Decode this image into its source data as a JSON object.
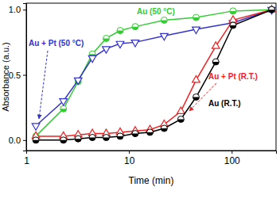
{
  "chart_data": {
    "type": "line",
    "xlabel": "Time (min)",
    "ylabel": "Absorbance (a.u.)",
    "log": "x",
    "xlim": [
      1,
      270
    ],
    "xticks": [
      1,
      10,
      100
    ],
    "ylim": [
      -0.08,
      1.05
    ],
    "yticks": [
      {
        "value": 0,
        "label": "0.0"
      },
      {
        "value": 0.5,
        "label": "0.5"
      },
      {
        "value": 1,
        "label": "1.0"
      }
    ],
    "series": [
      {
        "name": "Au (50 °C)",
        "color": "#33cc33",
        "marker": "circle",
        "x": [
          1.24,
          2.3,
          3.2,
          4.4,
          6.0,
          8.2,
          11.5,
          22,
          45,
          103,
          245
        ],
        "values": [
          0.03,
          0.24,
          0.45,
          0.66,
          0.78,
          0.84,
          0.87,
          0.92,
          0.94,
          0.99,
          1.0
        ]
      },
      {
        "name": "Au + Pt (50 °C)",
        "color": "#3333cc",
        "marker": "triangle-down",
        "x": [
          1.24,
          2.3,
          3.2,
          4.4,
          6.0,
          8.2,
          11.5,
          22,
          45,
          103,
          245
        ],
        "values": [
          0.11,
          0.3,
          0.46,
          0.63,
          0.7,
          0.74,
          0.75,
          0.8,
          0.85,
          0.9,
          1.0
        ]
      },
      {
        "name": "Au + Pt (R.T.)",
        "color": "#ee2222",
        "marker": "triangle-up",
        "x": [
          1.24,
          2.3,
          3.2,
          4.4,
          6.0,
          8.2,
          11.5,
          16,
          22,
          32,
          45,
          70,
          103,
          245
        ],
        "values": [
          0.03,
          0.03,
          0.04,
          0.05,
          0.05,
          0.06,
          0.07,
          0.08,
          0.12,
          0.22,
          0.46,
          0.72,
          0.92,
          1.0
        ]
      },
      {
        "name": "Au (R.T.)",
        "color": "#000000",
        "marker": "circle",
        "x": [
          1.24,
          2.3,
          3.2,
          4.4,
          6.0,
          8.2,
          11.5,
          16,
          22,
          32,
          45,
          70,
          103,
          245
        ],
        "values": [
          0.0,
          0.0,
          0.01,
          0.02,
          0.02,
          0.03,
          0.05,
          0.06,
          0.09,
          0.16,
          0.33,
          0.6,
          0.88,
          1.0
        ]
      }
    ]
  }
}
